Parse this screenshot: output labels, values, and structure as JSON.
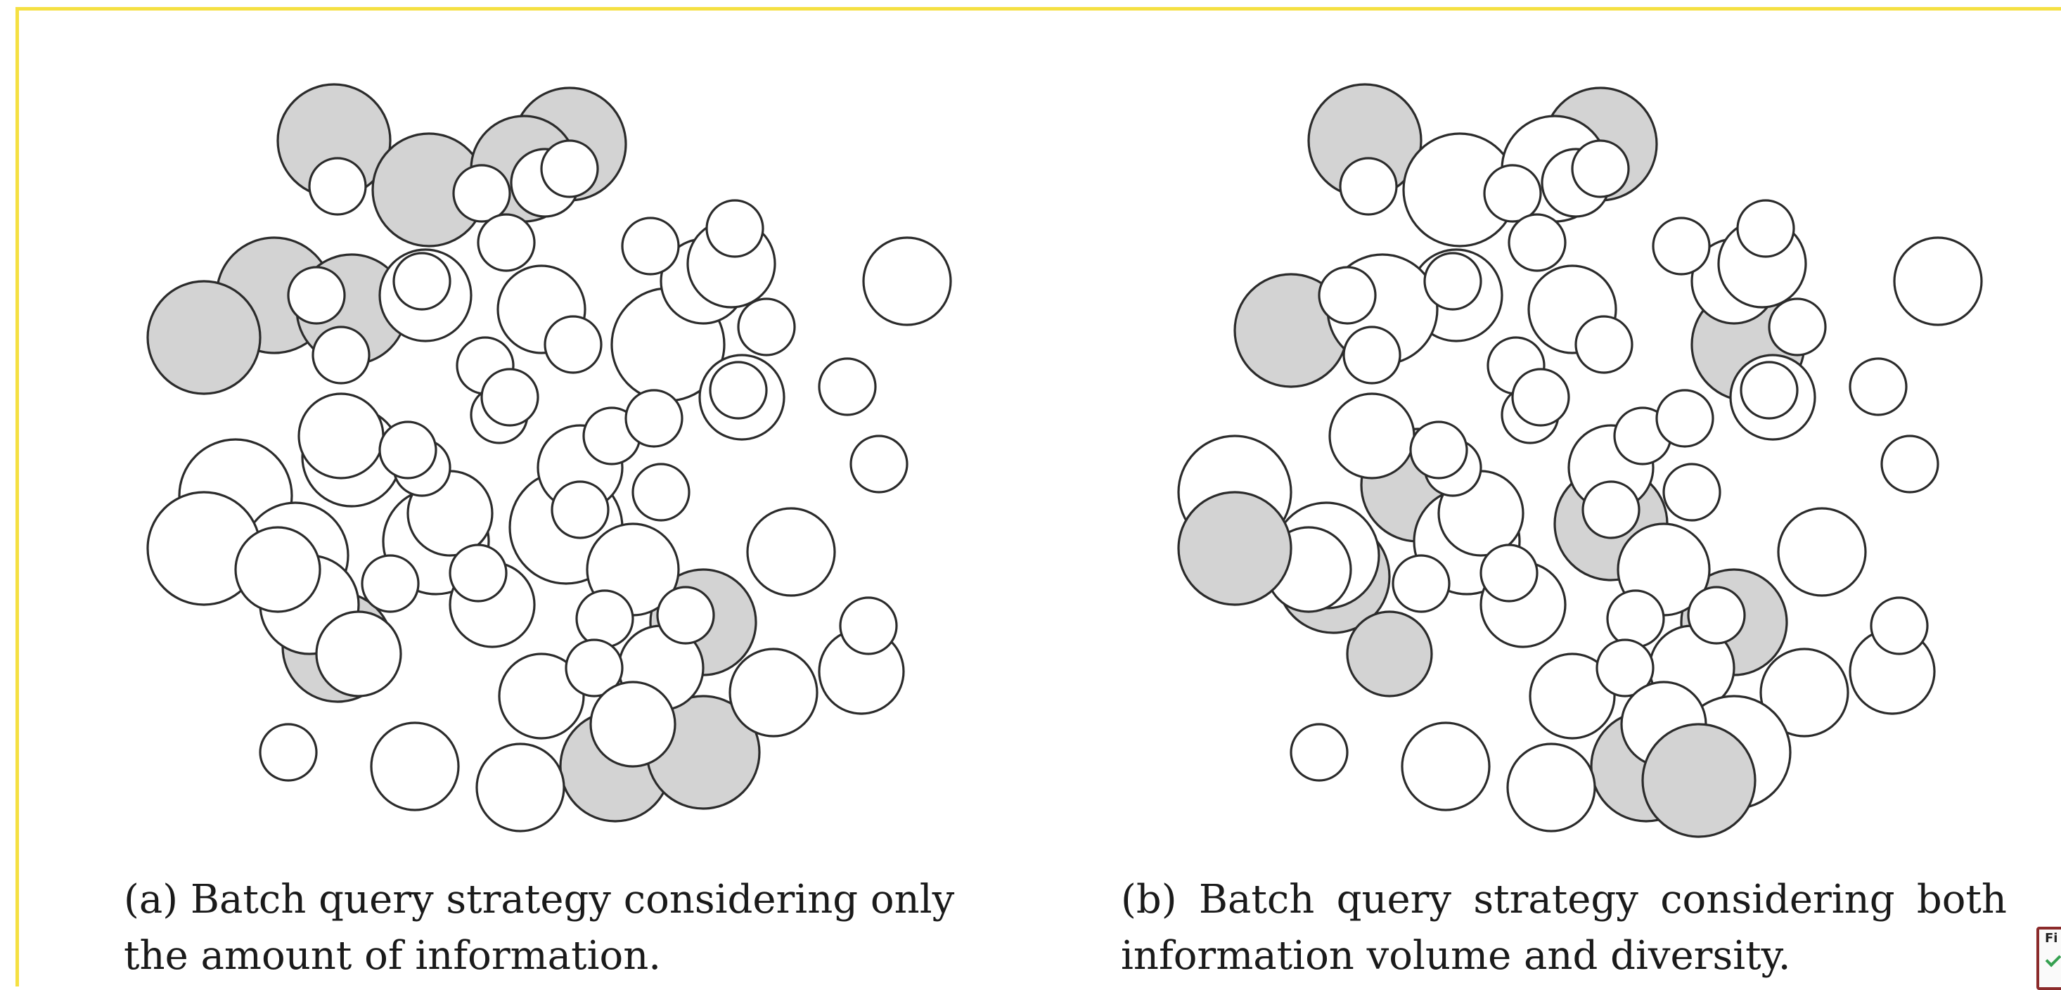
{
  "captions": {
    "a": "(a) Batch query strategy considering only the amount of information.",
    "b": "(b) Batch query strategy considering both information volume and diversity."
  },
  "colors": {
    "selected_fill": "#d3d3d3",
    "unselected_fill": "#ffffff",
    "stroke": "#2b2b2b",
    "frame": "#f5e042"
  },
  "corner_widget": {
    "text": "Fi",
    "icon": "check-icon"
  }
}
